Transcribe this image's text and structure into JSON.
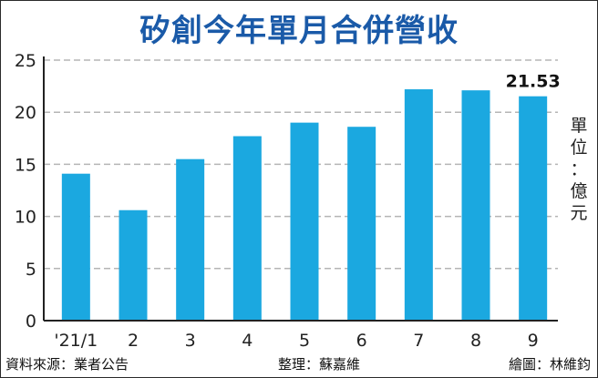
{
  "title": "矽創今年單月合併營收",
  "unit_label": "單位：億元",
  "footer": {
    "source": "資料來源：業者公告",
    "editor": "整理：蘇嘉維",
    "artist": "繪圖：林維鈞"
  },
  "colors": {
    "bar": "#1ba8e0",
    "title": "#1a5aa8",
    "grid": "#b5b5b5",
    "axis": "#222222"
  },
  "chart_data": {
    "type": "bar",
    "title": "矽創今年單月合併營收",
    "xlabel": "",
    "ylabel": "單位：億元",
    "categories": [
      "'21/1",
      "2",
      "3",
      "4",
      "5",
      "6",
      "7",
      "8",
      "9"
    ],
    "values": [
      14.1,
      10.6,
      15.5,
      17.7,
      19.0,
      18.6,
      22.2,
      22.1,
      21.53
    ],
    "ylim": [
      0,
      25
    ],
    "yticks": [
      0,
      5,
      10,
      15,
      20,
      25
    ],
    "grid": true,
    "data_labels": [
      {
        "index": 8,
        "text": "21.53"
      }
    ]
  }
}
